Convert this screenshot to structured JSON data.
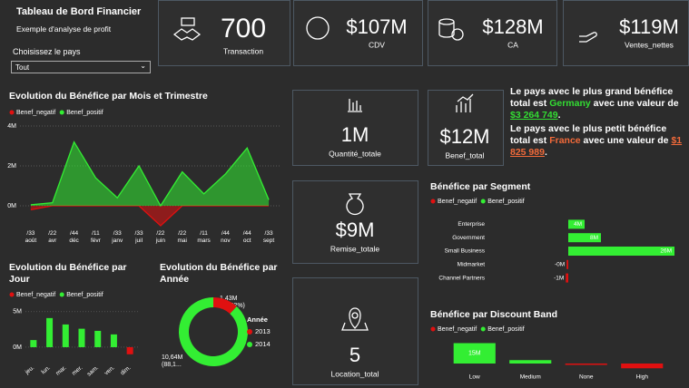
{
  "header": {
    "title": "Tableau de Bord Financier",
    "subtitle": "Exemple d'analyse de profit",
    "filter_label": "Choisissez le pays",
    "filter_value": "Tout"
  },
  "kpis": [
    {
      "value": "700",
      "label": "Transaction"
    },
    {
      "value": "$107M",
      "label": "CDV"
    },
    {
      "value": "$128M",
      "label": "CA"
    },
    {
      "value": "$119M",
      "label": "Ventes_nettes"
    },
    {
      "value": "1M",
      "label": "Quantité_totale"
    },
    {
      "value": "$12M",
      "label": "Benef_total"
    },
    {
      "value": "$9M",
      "label": "Remise_totale"
    },
    {
      "value": "5",
      "label": "Location_total"
    }
  ],
  "insights": [
    {
      "before": "Le pays avec le plus grand bénéfice total est",
      "country": "Germany",
      "middle": "avec une valeur de",
      "amount": "$3 264 749",
      "end": "."
    },
    {
      "before": "Le pays avec le plus petit bénéfice total est",
      "country": "France",
      "middle": "avec une valeur de",
      "amount": "$1 825 989",
      "end": "."
    }
  ],
  "chart_data": [
    {
      "type": "area",
      "title": "Evolution du Bénéfice par Mois et Trimestre",
      "categories": [
        [
          "/33",
          "août"
        ],
        [
          "/22",
          "avr"
        ],
        [
          "/44",
          "déc"
        ],
        [
          "/11",
          "févr"
        ],
        [
          "/33",
          "janv"
        ],
        [
          "/33",
          "juil"
        ],
        [
          "/22",
          "juin"
        ],
        [
          "/22",
          "mai"
        ],
        [
          "/11",
          "mars"
        ],
        [
          "/44",
          "nov"
        ],
        [
          "/44",
          "oct"
        ],
        [
          "/33",
          "sept"
        ]
      ],
      "series": [
        {
          "name": "Benef_negatif",
          "color": "#e01010",
          "values": [
            -0.2,
            0,
            0,
            0,
            0,
            0,
            -1.0,
            0,
            0,
            0,
            0,
            0
          ]
        },
        {
          "name": "Benef_positif",
          "color": "#33ee33",
          "values": [
            0.05,
            0.15,
            3.2,
            1.4,
            0.4,
            2.0,
            0,
            1.7,
            0.6,
            1.6,
            2.9,
            0.3
          ]
        }
      ],
      "ylim": [
        -1.2,
        4.2
      ],
      "yticks": [
        {
          "value": 0,
          "label": "0M"
        },
        {
          "value": 2,
          "label": "2M"
        },
        {
          "value": 4,
          "label": "4M"
        }
      ],
      "grid": true
    },
    {
      "type": "bar",
      "title": "Evolution du Bénéfice par Jour",
      "categories": [
        "jeu.",
        "lun.",
        "mar.",
        "mer.",
        "sam.",
        "ven.",
        "dim."
      ],
      "series": [
        {
          "name": "Benef_negatif",
          "color": "#e01010",
          "values": [
            null,
            null,
            null,
            null,
            null,
            null,
            -1.0
          ]
        },
        {
          "name": "Benef_positif",
          "color": "#33ee33",
          "values": [
            1.0,
            4.1,
            3.2,
            2.6,
            2.3,
            1.8,
            null
          ]
        }
      ],
      "ylim": [
        -1.5,
        6
      ],
      "yticks": [
        {
          "value": 0,
          "label": "0M"
        },
        {
          "value": 5,
          "label": "5M"
        }
      ],
      "grid": true
    },
    {
      "type": "pie",
      "title": "Evolution du Bénéfice par Année",
      "legend_title": "Année",
      "categories": [
        "2013",
        "2014"
      ],
      "values": [
        1.43,
        10.64
      ],
      "colors": [
        "#e01010",
        "#33ee33"
      ],
      "value_labels": [
        "1,43M (11,82%)",
        "10,64M (88,1..."
      ]
    },
    {
      "type": "bar",
      "orientation": "horizontal",
      "title": "Bénéfice par Segment",
      "categories": [
        "Enterprise",
        "Government",
        "Small Business",
        "Midmarket",
        "Channel Partners"
      ],
      "series": [
        {
          "name": "Benef_negatif",
          "color": "#e01010",
          "values": [
            null,
            null,
            null,
            -0.4,
            -0.6
          ],
          "value_labels": [
            null,
            null,
            null,
            "-0M",
            "-1M"
          ]
        },
        {
          "name": "Benef_positif",
          "color": "#33ee33",
          "values": [
            4,
            8,
            26,
            null,
            null
          ],
          "value_labels": [
            "4M",
            "8M",
            "26M",
            null,
            null
          ]
        }
      ],
      "xlim": [
        -12,
        27
      ]
    },
    {
      "type": "bar",
      "title": "Bénéfice par Discount Band",
      "categories": [
        "Low",
        "Medium",
        "None",
        "High"
      ],
      "series": [
        {
          "name": "Benef_negatif",
          "color": "#e01010",
          "values": [
            null,
            null,
            -1,
            -3.5
          ],
          "value_labels": [
            null,
            null,
            null,
            null
          ]
        },
        {
          "name": "Benef_positif",
          "color": "#33ee33",
          "values": [
            15,
            2.5,
            null,
            null
          ],
          "value_labels": [
            "15M",
            null,
            null,
            null
          ]
        }
      ],
      "ylim": [
        -6,
        20
      ]
    }
  ]
}
